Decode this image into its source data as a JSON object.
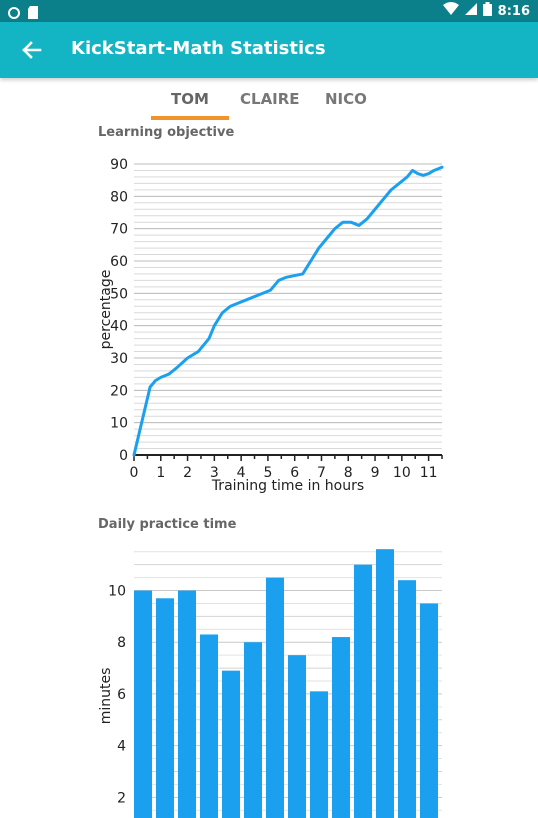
{
  "status_bar": {
    "time": "8:16"
  },
  "app_bar": {
    "title": "KickStart-Math Statistics"
  },
  "tabs": [
    {
      "label": "TOM",
      "active": true
    },
    {
      "label": "CLAIRE",
      "active": false
    },
    {
      "label": "NICO",
      "active": false
    }
  ],
  "colors": {
    "app_bar": "#13b4c3",
    "status_bar": "#0b7f8a",
    "series": "#1aa0ef",
    "tab_indicator": "#f0932a"
  },
  "chart_data": [
    {
      "type": "line",
      "title": "Learning objective",
      "xlabel": "Training time in hours",
      "ylabel": "percentage",
      "xlim": [
        0,
        11.5
      ],
      "ylim": [
        0,
        90
      ],
      "xticks": [
        0,
        1,
        2,
        3,
        4,
        5,
        6,
        7,
        8,
        9,
        10,
        11
      ],
      "yticks": [
        0,
        10,
        20,
        30,
        40,
        50,
        60,
        70,
        80,
        90
      ],
      "grid": true,
      "series": [
        {
          "x": [
            0,
            0.2,
            0.4,
            0.6,
            0.8,
            1.0,
            1.3,
            1.6,
            2.0,
            2.4,
            2.8,
            3.0,
            3.3,
            3.6,
            3.9,
            4.2,
            4.5,
            4.8,
            5.1,
            5.4,
            5.7,
            6.0,
            6.3,
            6.6,
            6.9,
            7.2,
            7.5,
            7.8,
            8.1,
            8.4,
            8.7,
            9.0,
            9.3,
            9.6,
            9.9,
            10.2,
            10.4,
            10.6,
            10.8,
            11.0,
            11.2,
            11.5
          ],
          "y": [
            0,
            7,
            14,
            21,
            23,
            24,
            25,
            27,
            30,
            32,
            36,
            40,
            44,
            46,
            47,
            48,
            49,
            50,
            51,
            54,
            55,
            55.5,
            56,
            60,
            64,
            67,
            70,
            72,
            72,
            71,
            73,
            76,
            79,
            82,
            84,
            86,
            88,
            87,
            86.5,
            87,
            88,
            89
          ]
        }
      ]
    },
    {
      "type": "bar",
      "title": "Daily practice time",
      "ylabel": "minutes",
      "ylim": [
        1.2,
        11.8
      ],
      "yticks": [
        2,
        4,
        6,
        8,
        10
      ],
      "grid": true,
      "values": [
        10,
        9.7,
        10,
        8.3,
        6.9,
        8,
        10.5,
        7.5,
        6.1,
        8.2,
        11,
        11.6,
        10.4,
        9.5
      ]
    }
  ]
}
